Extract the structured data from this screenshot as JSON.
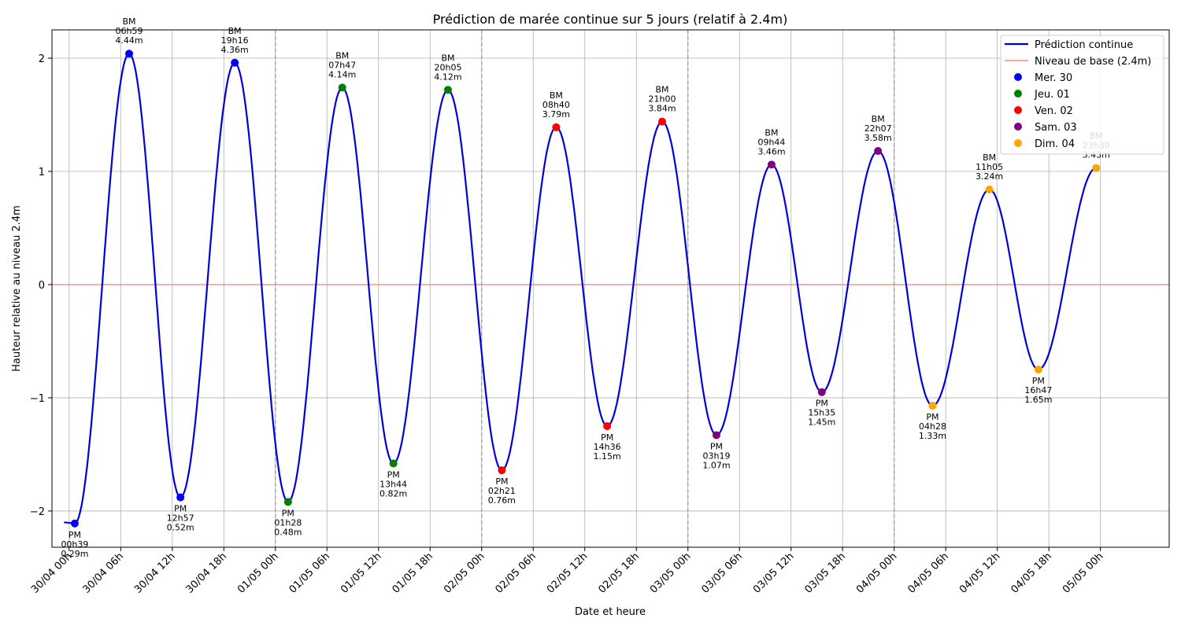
{
  "chart_data": {
    "type": "line",
    "title": "Prédiction de marée continue sur 5 jours (relatif à 2.4m)",
    "xlabel": "Date et heure",
    "ylabel": "Hauteur relative au niveau 2.4m",
    "x_unit": "hours since 30/04 00h",
    "xlim": [
      -2.0,
      128.0
    ],
    "ylim": [
      -2.32,
      2.25
    ],
    "x_ticks": [
      {
        "hour": 0,
        "label": "30/04 00h"
      },
      {
        "hour": 6,
        "label": "30/04 06h"
      },
      {
        "hour": 12,
        "label": "30/04 12h"
      },
      {
        "hour": 18,
        "label": "30/04 18h"
      },
      {
        "hour": 24,
        "label": "01/05 00h"
      },
      {
        "hour": 30,
        "label": "01/05 06h"
      },
      {
        "hour": 36,
        "label": "01/05 12h"
      },
      {
        "hour": 42,
        "label": "01/05 18h"
      },
      {
        "hour": 48,
        "label": "02/05 00h"
      },
      {
        "hour": 54,
        "label": "02/05 06h"
      },
      {
        "hour": 60,
        "label": "02/05 12h"
      },
      {
        "hour": 66,
        "label": "02/05 18h"
      },
      {
        "hour": 72,
        "label": "03/05 00h"
      },
      {
        "hour": 78,
        "label": "03/05 06h"
      },
      {
        "hour": 84,
        "label": "03/05 12h"
      },
      {
        "hour": 90,
        "label": "03/05 18h"
      },
      {
        "hour": 96,
        "label": "04/05 00h"
      },
      {
        "hour": 102,
        "label": "04/05 06h"
      },
      {
        "hour": 108,
        "label": "04/05 12h"
      },
      {
        "hour": 114,
        "label": "04/05 18h"
      },
      {
        "hour": 120,
        "label": "05/05 00h"
      }
    ],
    "y_ticks": [
      {
        "value": -2,
        "label": "−2"
      },
      {
        "value": -1,
        "label": "−1"
      },
      {
        "value": 0,
        "label": "0"
      },
      {
        "value": 1,
        "label": "1"
      },
      {
        "value": 2,
        "label": "2"
      }
    ],
    "day_boundaries": [
      24,
      48,
      72,
      96
    ],
    "grid": true,
    "legend_position": "top-right",
    "baseline": {
      "value": 0,
      "name": "Niveau de base (2.4m)",
      "color": "#ff6b6b"
    },
    "curve": {
      "name": "Prédiction continue",
      "color": "#0000dd",
      "start_hour": -0.6,
      "start_value": -2.1
    },
    "day_colors": [
      {
        "name": "Mer. 30",
        "color": "#0000ff"
      },
      {
        "name": "Jeu. 01",
        "color": "#008000"
      },
      {
        "name": "Ven. 02",
        "color": "#ff0000"
      },
      {
        "name": "Sam. 03",
        "color": "#800080"
      },
      {
        "name": "Dim. 04",
        "color": "#ffa500"
      }
    ],
    "extremes": [
      {
        "type": "PM",
        "time": "00h39",
        "height": "0.29m",
        "hour": 0.65,
        "value": -2.11,
        "day": 0
      },
      {
        "type": "BM",
        "time": "06h59",
        "height": "4.44m",
        "hour": 6.98,
        "value": 2.04,
        "day": 0
      },
      {
        "type": "PM",
        "time": "12h57",
        "height": "0.52m",
        "hour": 12.95,
        "value": -1.88,
        "day": 0
      },
      {
        "type": "BM",
        "time": "19h16",
        "height": "4.36m",
        "hour": 19.27,
        "value": 1.96,
        "day": 0
      },
      {
        "type": "PM",
        "time": "01h28",
        "height": "0.48m",
        "hour": 25.47,
        "value": -1.92,
        "day": 1
      },
      {
        "type": "BM",
        "time": "07h47",
        "height": "4.14m",
        "hour": 31.78,
        "value": 1.74,
        "day": 1
      },
      {
        "type": "PM",
        "time": "13h44",
        "height": "0.82m",
        "hour": 37.73,
        "value": -1.58,
        "day": 1
      },
      {
        "type": "BM",
        "time": "20h05",
        "height": "4.12m",
        "hour": 44.08,
        "value": 1.72,
        "day": 1
      },
      {
        "type": "PM",
        "time": "02h21",
        "height": "0.76m",
        "hour": 50.35,
        "value": -1.64,
        "day": 2
      },
      {
        "type": "BM",
        "time": "08h40",
        "height": "3.79m",
        "hour": 56.67,
        "value": 1.39,
        "day": 2
      },
      {
        "type": "PM",
        "time": "14h36",
        "height": "1.15m",
        "hour": 62.6,
        "value": -1.25,
        "day": 2
      },
      {
        "type": "BM",
        "time": "21h00",
        "height": "3.84m",
        "hour": 69.0,
        "value": 1.44,
        "day": 2
      },
      {
        "type": "PM",
        "time": "03h19",
        "height": "1.07m",
        "hour": 75.32,
        "value": -1.33,
        "day": 3
      },
      {
        "type": "BM",
        "time": "09h44",
        "height": "3.46m",
        "hour": 81.73,
        "value": 1.06,
        "day": 3
      },
      {
        "type": "PM",
        "time": "15h35",
        "height": "1.45m",
        "hour": 87.58,
        "value": -0.95,
        "day": 3
      },
      {
        "type": "BM",
        "time": "22h07",
        "height": "3.58m",
        "hour": 94.12,
        "value": 1.18,
        "day": 3
      },
      {
        "type": "PM",
        "time": "04h28",
        "height": "1.33m",
        "hour": 100.47,
        "value": -1.07,
        "day": 4
      },
      {
        "type": "BM",
        "time": "11h05",
        "height": "3.24m",
        "hour": 107.08,
        "value": 0.84,
        "day": 4
      },
      {
        "type": "PM",
        "time": "16h47",
        "height": "1.65m",
        "hour": 112.78,
        "value": -0.75,
        "day": 4
      },
      {
        "type": "BM",
        "time": "23h30",
        "height": "3.43m",
        "hour": 119.5,
        "value": 1.03,
        "day": 4
      }
    ]
  }
}
